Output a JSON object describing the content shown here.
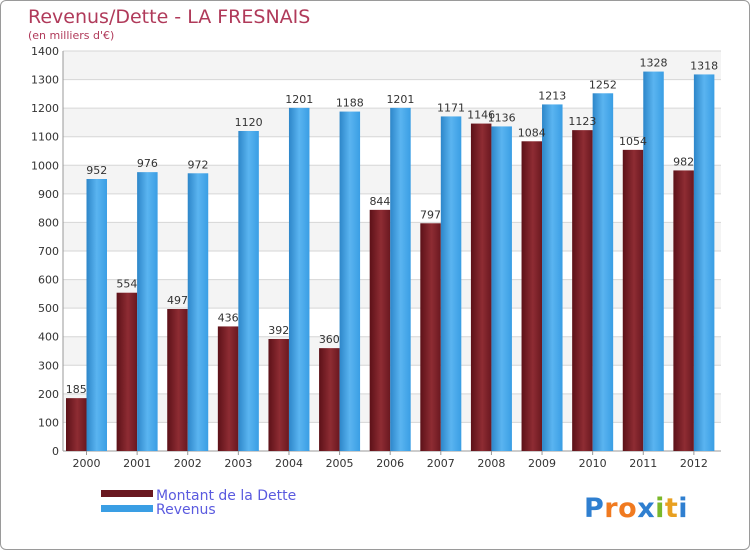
{
  "chart_data": {
    "type": "bar",
    "title": "Revenus/Dette - LA FRESNAIS",
    "subtitle": "(en milliers d'€)",
    "categories": [
      "2000",
      "2001",
      "2002",
      "2003",
      "2004",
      "2005",
      "2006",
      "2007",
      "2008",
      "2009",
      "2010",
      "2011",
      "2012"
    ],
    "series": [
      {
        "name": "Montant de la Dette",
        "values": [
          185,
          554,
          497,
          436,
          392,
          360,
          844,
          797,
          1146,
          1084,
          1123,
          1054,
          982
        ]
      },
      {
        "name": "Revenus",
        "values": [
          952,
          976,
          972,
          1120,
          1201,
          1188,
          1201,
          1171,
          1136,
          1213,
          1252,
          1328,
          1318
        ]
      }
    ],
    "ylim": [
      0,
      1400
    ],
    "ytick_step": 100,
    "grid": true,
    "legend_position": "bottom-left",
    "colors": {
      "dette": "#7a1f26",
      "revenus": "#3a9ee4",
      "title": "#b03a5a",
      "legend_text": "#5a5adf"
    }
  },
  "logo": {
    "text": "Proxiti",
    "letters": [
      {
        "ch": "P",
        "color": "#2f7fd0"
      },
      {
        "ch": "r",
        "color": "#f07a20"
      },
      {
        "ch": "o",
        "color": "#f07a20"
      },
      {
        "ch": "x",
        "color": "#2f7fd0"
      },
      {
        "ch": "i",
        "color": "#7ab82a"
      },
      {
        "ch": "t",
        "color": "#e8a020"
      },
      {
        "ch": "i",
        "color": "#2f7fd0"
      }
    ]
  }
}
